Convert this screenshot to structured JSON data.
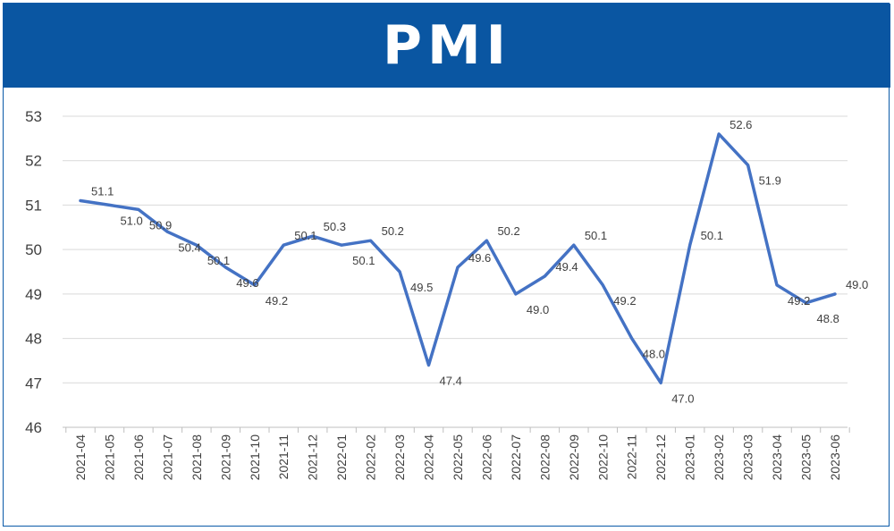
{
  "colors": {
    "banner": "#0a56a2",
    "line": "#4472c4",
    "grid": "#d9d9d9",
    "text": "#404040"
  },
  "chart_data": {
    "type": "line",
    "title": "PMI",
    "xlabel": "",
    "ylabel": "",
    "ylim": [
      46,
      53
    ],
    "yticks": [
      "46",
      "47",
      "48",
      "49",
      "50",
      "51",
      "52",
      "53"
    ],
    "grid": true,
    "legend": "none",
    "categories": [
      "2021-04",
      "2021-05",
      "2021-06",
      "2021-07",
      "2021-08",
      "2021-09",
      "2021-10",
      "2021-11",
      "2021-12",
      "2022-01",
      "2022-02",
      "2022-03",
      "2022-04",
      "2022-05",
      "2022-06",
      "2022-07",
      "2022-08",
      "2022-09",
      "2022-10",
      "2022-11",
      "2022-12",
      "2023-01",
      "2023-02",
      "2023-03",
      "2023-04",
      "2023-05",
      "2023-06"
    ],
    "series": [
      {
        "values": [
          51.1,
          51.0,
          50.9,
          50.4,
          50.1,
          49.6,
          49.2,
          50.1,
          50.3,
          50.1,
          50.2,
          49.5,
          47.4,
          49.6,
          50.2,
          49.0,
          49.4,
          50.1,
          49.2,
          48.0,
          47.0,
          50.1,
          52.6,
          51.9,
          49.2,
          48.8,
          49.0
        ],
        "labels": [
          "51.1",
          "51.0",
          "50.9",
          "50.4",
          "50.1",
          "49.6",
          "49.2",
          "50.1",
          "50.3",
          "50.1",
          "50.2",
          "49.5",
          "47.4",
          "49.6",
          "50.2",
          "49.0",
          "49.4",
          "50.1",
          "49.2",
          "48.0",
          "47.0",
          "50.1",
          "52.6",
          "51.9",
          "49.2",
          "48.8",
          "49.0"
        ]
      }
    ]
  }
}
